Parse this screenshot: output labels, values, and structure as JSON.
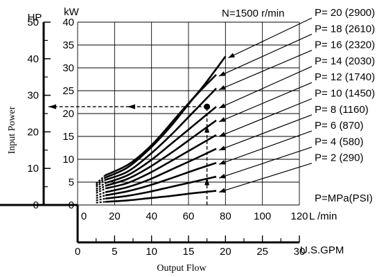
{
  "chart_data": {
    "type": "line",
    "annotation": "N=1500 r/min",
    "x_axis_flow": {
      "label": "L /min",
      "ticks": [
        "0",
        "20",
        "40",
        "60",
        "80",
        "100",
        "120"
      ],
      "range": [
        0,
        120
      ]
    },
    "x_axis_gpm": {
      "label": "U.S.GPM",
      "ticks": [
        "0",
        "5",
        "10",
        "15",
        "20",
        "25",
        "30"
      ],
      "range": [
        0,
        30
      ]
    },
    "xlabel": "Output Flow",
    "y_axis_kw": {
      "label": "kW",
      "ticks": [
        "0",
        "5",
        "10",
        "15",
        "20",
        "25",
        "30",
        "35",
        "40"
      ],
      "range": [
        0,
        40
      ]
    },
    "y_axis_hp": {
      "label": "HP",
      "ticks": [
        "0",
        "10",
        "20",
        "30",
        "40",
        "50"
      ],
      "range": [
        0,
        50
      ]
    },
    "ylabel": "Input Power",
    "grid": true,
    "x_solid_start": 15,
    "series": [
      {
        "name": "P= 20 (2900)",
        "x_start": 15,
        "x_end": 80,
        "values": [
          6.5,
          9.0,
          13.5,
          19.5,
          25.5,
          32.5
        ]
      },
      {
        "name": "P= 18 (2610)",
        "x_start": 15,
        "x_end": 75,
        "values": [
          6.0,
          8.2,
          12.3,
          17.5,
          23.5,
          28.5
        ]
      },
      {
        "name": "P= 16 (2320)",
        "x_start": 15,
        "x_end": 75,
        "values": [
          5.5,
          7.3,
          11.0,
          15.5,
          20.5,
          25.5
        ]
      },
      {
        "name": "P= 14 (2030)",
        "x_start": 15,
        "x_end": 75,
        "values": [
          4.8,
          6.5,
          9.6,
          13.5,
          17.5,
          21.5
        ]
      },
      {
        "name": "P= 12 (1740)",
        "x_start": 15,
        "x_end": 75,
        "values": [
          4.2,
          5.7,
          8.3,
          11.5,
          15.0,
          18.5
        ]
      },
      {
        "name": "P= 10 (1450)",
        "x_start": 15,
        "x_end": 75,
        "values": [
          3.6,
          4.8,
          7.0,
          9.7,
          12.5,
          15.3
        ]
      },
      {
        "name": "P=    8 (1160)",
        "x_start": 15,
        "x_end": 75,
        "values": [
          2.8,
          3.9,
          5.6,
          7.8,
          10.0,
          12.3
        ]
      },
      {
        "name": "P=    6   (870)",
        "x_start": 15,
        "x_end": 75,
        "values": [
          2.1,
          3.0,
          4.3,
          5.9,
          7.6,
          9.2
        ]
      },
      {
        "name": "P=    4   (580)",
        "x_start": 15,
        "x_end": 75,
        "values": [
          1.4,
          2.0,
          2.9,
          4.0,
          5.1,
          6.2
        ]
      },
      {
        "name": "P=    2   (290)",
        "x_start": 15,
        "x_end": 75,
        "values": [
          0.7,
          1.0,
          1.5,
          2.0,
          2.6,
          3.1
        ]
      }
    ],
    "pressure_unit_label": "P=MPa(PSI)",
    "example_point": {
      "x": 70,
      "y": 21.5
    }
  }
}
